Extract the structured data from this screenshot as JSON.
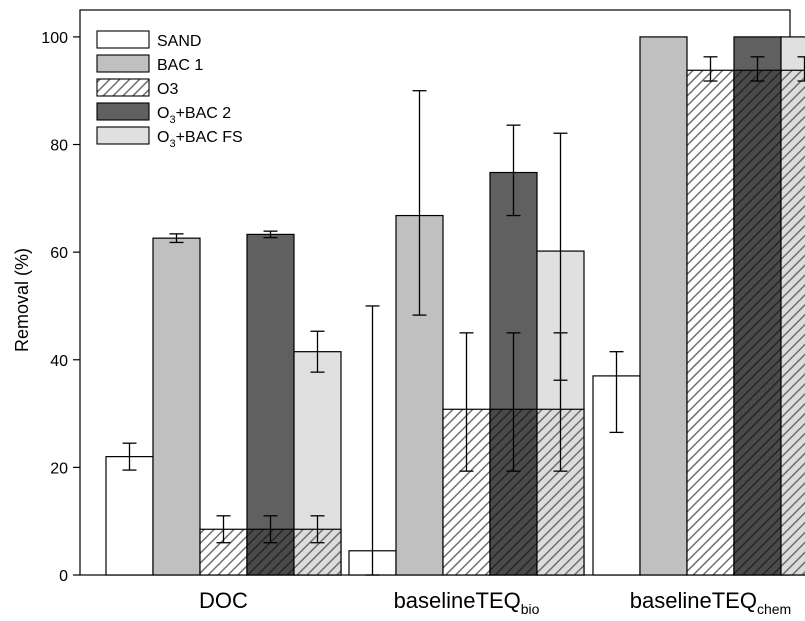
{
  "chart_data": {
    "type": "bar",
    "ylabel": "Removal (%)",
    "ylim": [
      0,
      105
    ],
    "yticks": [
      0,
      20,
      40,
      60,
      80,
      100
    ],
    "grid": false,
    "legend_position": "top-left",
    "categories": [
      {
        "main": "DOC",
        "sub": ""
      },
      {
        "main": "baselineTEQ",
        "sub": "bio"
      },
      {
        "main": "baselineTEQ",
        "sub": "chem"
      }
    ],
    "series": [
      {
        "name": "SAND",
        "label_main": "SAND",
        "label_sub": "",
        "label_rest": "",
        "fill": "#ffffff",
        "values": [
          22,
          4.5,
          37
        ],
        "err_low": [
          2.5,
          4.5,
          10.5
        ],
        "err_high": [
          2.5,
          45.5,
          4.5
        ]
      },
      {
        "name": "BAC 1",
        "label_main": "BAC 1",
        "label_sub": "",
        "label_rest": "",
        "fill": "#c0c0c0",
        "values": [
          62.6,
          66.8,
          100
        ],
        "err_low": [
          0.8,
          18.5,
          0
        ],
        "err_high": [
          0.8,
          23.2,
          0
        ]
      },
      {
        "name": "O3",
        "label_main": "O3",
        "label_sub": "",
        "label_rest": "",
        "fill": "hatch-light",
        "values": [
          8.5,
          30.8,
          93.8
        ],
        "err_low": [
          2.5,
          11.5,
          2.0
        ],
        "err_high": [
          2.5,
          14.2,
          2.5
        ]
      },
      {
        "name": "O3+BAC 2",
        "label_main": "O",
        "label_sub": "3",
        "label_rest": "+BAC 2",
        "fill": "#606060",
        "values": [
          63.3,
          74.8,
          100
        ],
        "err_low": [
          0.6,
          8.0,
          0
        ],
        "err_high": [
          0.6,
          8.8,
          0
        ]
      },
      {
        "name": "O3+BAC FS",
        "label_main": "O",
        "label_sub": "3",
        "label_rest": "+BAC FS",
        "fill": "#e0e0e0",
        "values": [
          41.5,
          60.2,
          100
        ],
        "err_low": [
          3.8,
          24.0,
          0
        ],
        "err_high": [
          3.8,
          21.9,
          0
        ]
      }
    ],
    "ozonation_overlay": {
      "description": "O3 hatched segment drawn over O3+BAC 2 and O3+BAC FS bars",
      "values": [
        8.5,
        30.8,
        93.8
      ],
      "err_low": [
        2.5,
        11.5,
        2.0
      ],
      "err_high": [
        2.5,
        14.2,
        2.5
      ]
    }
  }
}
